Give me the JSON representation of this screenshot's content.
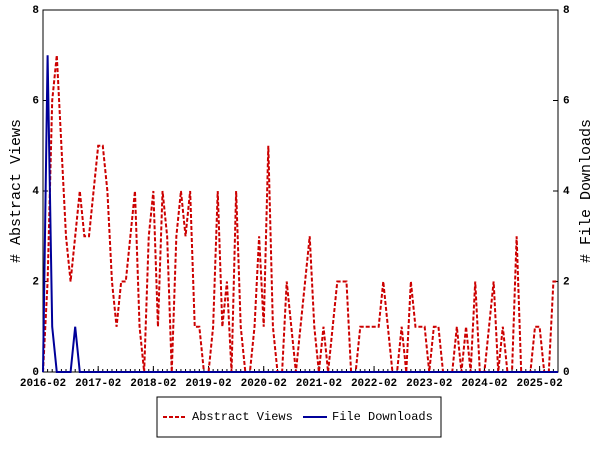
{
  "chart_data": {
    "type": "line",
    "y_label": "# Abstract Views",
    "y2_label": "# File Downloads",
    "x": [
      "2016-02",
      "2016-03",
      "2016-04",
      "2016-05",
      "2016-06",
      "2016-07",
      "2016-08",
      "2016-09",
      "2016-10",
      "2016-11",
      "2016-12",
      "2017-01",
      "2017-02",
      "2017-03",
      "2017-04",
      "2017-05",
      "2017-06",
      "2017-07",
      "2017-08",
      "2017-09",
      "2017-10",
      "2017-11",
      "2017-12",
      "2018-01",
      "2018-02",
      "2018-03",
      "2018-04",
      "2018-05",
      "2018-06",
      "2018-07",
      "2018-08",
      "2018-09",
      "2018-10",
      "2018-11",
      "2018-12",
      "2019-01",
      "2019-02",
      "2019-03",
      "2019-04",
      "2019-05",
      "2019-06",
      "2019-07",
      "2019-08",
      "2019-09",
      "2019-10",
      "2019-11",
      "2019-12",
      "2020-01",
      "2020-02",
      "2020-03",
      "2020-04",
      "2020-05",
      "2020-06",
      "2020-07",
      "2020-08",
      "2020-09",
      "2020-10",
      "2020-11",
      "2020-12",
      "2021-01",
      "2021-02",
      "2021-03",
      "2021-04",
      "2021-05",
      "2021-06",
      "2021-07",
      "2021-08",
      "2021-09",
      "2021-10",
      "2021-11",
      "2021-12",
      "2022-01",
      "2022-02",
      "2022-03",
      "2022-04",
      "2022-05",
      "2022-06",
      "2022-07",
      "2022-08",
      "2022-09",
      "2022-10",
      "2022-11",
      "2022-12",
      "2023-01",
      "2023-02",
      "2023-03",
      "2023-04",
      "2023-05",
      "2023-06",
      "2023-07",
      "2023-08",
      "2023-09",
      "2023-10",
      "2023-11",
      "2023-12",
      "2024-01",
      "2024-02",
      "2024-03",
      "2024-04",
      "2024-05",
      "2024-06",
      "2024-07",
      "2024-08",
      "2024-09",
      "2024-10",
      "2024-11",
      "2024-12",
      "2025-01",
      "2025-02",
      "2025-03",
      "2025-04",
      "2025-05",
      "2025-06"
    ],
    "xticks": [
      "2016-02",
      "2017-02",
      "2018-02",
      "2019-02",
      "2020-02",
      "2021-02",
      "2022-02",
      "2023-02",
      "2024-02",
      "2025-02"
    ],
    "ylim": [
      0,
      8
    ],
    "yticks": [
      0,
      2,
      4,
      6,
      8
    ],
    "y2lim": [
      0,
      8
    ],
    "y2ticks": [
      0,
      2,
      4,
      6,
      8
    ],
    "series": [
      {
        "name": "Abstract Views",
        "color": "#cc0000",
        "dashed": true,
        "values": [
          0,
          2,
          6,
          7,
          5,
          3,
          2,
          3,
          4,
          3,
          3,
          4,
          5,
          5,
          4,
          2,
          1,
          2,
          2,
          3,
          4,
          1,
          0,
          3,
          4,
          1,
          4,
          3,
          0,
          3,
          4,
          3,
          4,
          1,
          1,
          0,
          0,
          1,
          4,
          1,
          2,
          0,
          4,
          1,
          0,
          0,
          1,
          3,
          1,
          5,
          1,
          0,
          0,
          2,
          1,
          0,
          1,
          2,
          3,
          1,
          0,
          1,
          0,
          1,
          2,
          2,
          2,
          0,
          0,
          1,
          1,
          1,
          1,
          1,
          2,
          1,
          0,
          0,
          1,
          0,
          2,
          1,
          1,
          1,
          0,
          1,
          1,
          0,
          0,
          0,
          1,
          0,
          1,
          0,
          2,
          0,
          0,
          1,
          2,
          0,
          1,
          0,
          0,
          3,
          0,
          0,
          0,
          1,
          1,
          0,
          0,
          2,
          2
        ]
      },
      {
        "name": "File Downloads",
        "color": "#000099",
        "axis": "y2",
        "values": [
          0,
          7,
          1,
          0,
          0,
          0,
          0,
          1,
          0,
          0,
          0,
          0,
          0,
          0,
          0,
          0,
          0,
          0,
          0,
          0,
          0,
          0,
          0,
          0,
          0,
          0,
          0,
          0,
          0,
          0,
          0,
          0,
          0,
          0,
          0,
          0,
          0,
          0,
          0,
          0,
          0,
          0,
          0,
          0,
          0,
          0,
          0,
          0,
          0,
          0,
          0,
          0,
          0,
          0,
          0,
          0,
          0,
          0,
          0,
          0,
          0,
          0,
          0,
          0,
          0,
          0,
          0,
          0,
          0,
          0,
          0,
          0,
          0,
          0,
          0,
          0,
          0,
          0,
          0,
          0,
          0,
          0,
          0,
          0,
          0,
          0,
          0,
          0,
          0,
          0,
          0,
          0,
          0,
          0,
          0,
          0,
          0,
          0,
          0,
          0,
          0,
          0,
          0,
          0,
          0,
          0,
          0,
          0,
          0,
          0,
          0,
          0,
          0
        ]
      }
    ],
    "legend": "bottom"
  }
}
